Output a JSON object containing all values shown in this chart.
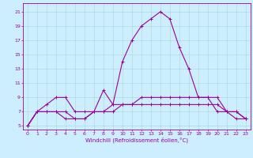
{
  "xlabel": "Windchill (Refroidissement éolien,°C)",
  "bg_color": "#cceeff",
  "line_color": "#990099",
  "grid_color": "#aadddd",
  "x_ticks": [
    0,
    1,
    2,
    3,
    4,
    5,
    6,
    7,
    8,
    9,
    10,
    11,
    12,
    13,
    14,
    15,
    16,
    17,
    18,
    19,
    20,
    21,
    22,
    23
  ],
  "y_ticks": [
    5,
    7,
    9,
    11,
    13,
    15,
    17,
    19,
    21
  ],
  "ylim": [
    4.5,
    22.2
  ],
  "xlim": [
    -0.5,
    23.5
  ],
  "series": [
    {
      "x": [
        0,
        1,
        2,
        3,
        4,
        5,
        6,
        7,
        8,
        9,
        10,
        11,
        12,
        13,
        14,
        15,
        16,
        17,
        18,
        19,
        20,
        21,
        22,
        23
      ],
      "y": [
        5,
        7,
        7,
        7,
        6,
        6,
        6,
        7,
        10,
        8,
        8,
        8,
        8,
        8,
        8,
        8,
        8,
        8,
        8,
        8,
        8,
        7,
        7,
        6
      ]
    },
    {
      "x": [
        0,
        1,
        2,
        3,
        4,
        5,
        6,
        7,
        8,
        9,
        10,
        11,
        12,
        13,
        14,
        15,
        16,
        17,
        18,
        19,
        20,
        21,
        22,
        23
      ],
      "y": [
        5,
        7,
        8,
        9,
        9,
        7,
        7,
        7,
        7,
        7,
        8,
        8,
        9,
        9,
        9,
        9,
        9,
        9,
        9,
        9,
        7,
        7,
        7,
        6
      ]
    },
    {
      "x": [
        0,
        1,
        2,
        3,
        4,
        5,
        6,
        7,
        8,
        9,
        10,
        11,
        12,
        13,
        14,
        15,
        16,
        17,
        18,
        19,
        20,
        21,
        22,
        23
      ],
      "y": [
        5,
        7,
        7,
        7,
        7,
        6,
        6,
        7,
        7,
        8,
        14,
        17,
        19,
        20,
        21,
        20,
        16,
        13,
        9,
        9,
        9,
        7,
        6,
        6
      ]
    }
  ]
}
